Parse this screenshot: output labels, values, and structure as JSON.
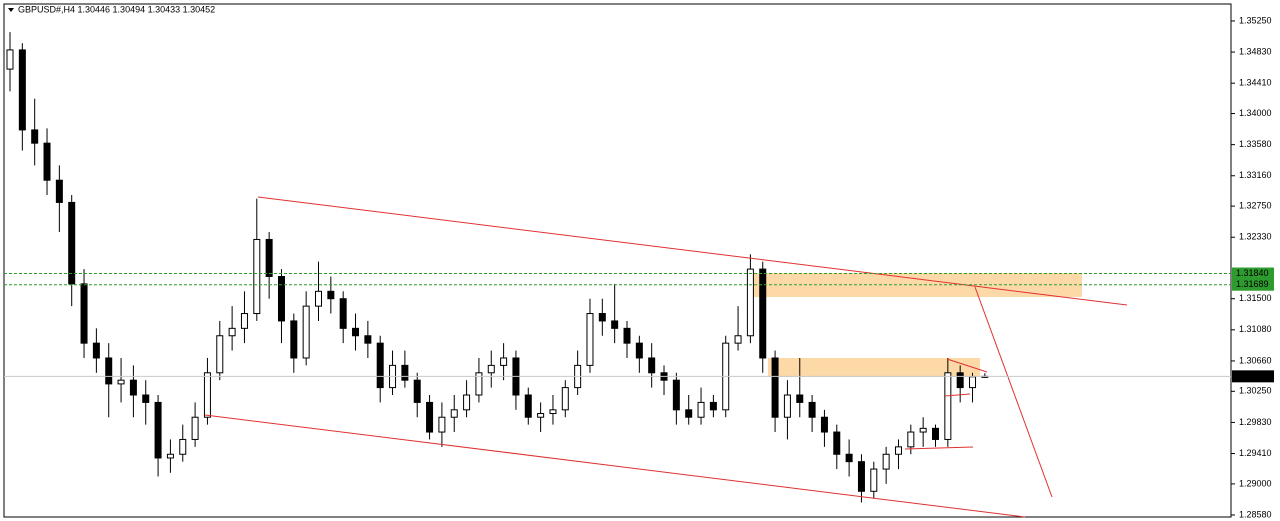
{
  "chart_data": {
    "type": "candlestick",
    "title": "GBPUSD#,H4  1.30446 1.30494 1.30433 1.30452",
    "ylim": [
      1.28553,
      1.35479
    ],
    "yticks": [
      {
        "value": 1.3525,
        "label": "1.35250"
      },
      {
        "value": 1.3483,
        "label": "1.34830"
      },
      {
        "value": 1.3441,
        "label": "1.34410"
      },
      {
        "value": 1.34,
        "label": "1.34000"
      },
      {
        "value": 1.3358,
        "label": "1.33580"
      },
      {
        "value": 1.3316,
        "label": "1.33160"
      },
      {
        "value": 1.3275,
        "label": "1.32750"
      },
      {
        "value": 1.3233,
        "label": "1.32330"
      },
      {
        "value": 1.315,
        "label": "1.31500"
      },
      {
        "value": 1.3108,
        "label": "1.31080"
      },
      {
        "value": 1.3066,
        "label": "1.30660"
      },
      {
        "value": 1.3025,
        "label": "1.30250"
      },
      {
        "value": 1.2983,
        "label": "1.29830"
      },
      {
        "value": 1.2941,
        "label": "1.29410"
      },
      {
        "value": 1.29,
        "label": "1.29000"
      },
      {
        "value": 1.2858,
        "label": "1.28580"
      }
    ],
    "price_lines": [
      {
        "price": {
          "value": 1.3184,
          "label": "1.31840"
        },
        "color": "#2e9b2e",
        "style": "dashed"
      },
      {
        "price": 1.31689,
        "color": "#2e9b2e",
        "style": "dashed"
      },
      {
        "price": 1.30452,
        "color": "#000000",
        "style": "solid"
      }
    ],
    "bull_color": "#ffffff",
    "bear_color": "#000000",
    "ohlc": [
      [
        1.346,
        1.351,
        1.343,
        1.34859
      ],
      [
        1.34859,
        1.3495,
        1.335,
        1.33779
      ],
      [
        1.33779,
        1.342,
        1.333,
        1.336
      ],
      [
        1.336,
        1.338,
        1.329,
        1.331
      ],
      [
        1.331,
        1.333,
        1.324,
        1.328
      ],
      [
        1.328,
        1.329,
        1.314,
        1.317
      ],
      [
        1.317,
        1.319,
        1.307,
        1.309
      ],
      [
        1.309,
        1.311,
        1.305,
        1.307
      ],
      [
        1.307,
        1.309,
        1.299,
        1.3035
      ],
      [
        1.3035,
        1.307,
        1.301,
        1.304
      ],
      [
        1.304,
        1.306,
        1.299,
        1.302
      ],
      [
        1.302,
        1.304,
        1.298,
        1.301
      ],
      [
        1.301,
        1.302,
        1.291,
        1.2935
      ],
      [
        1.2935,
        1.296,
        1.2915,
        1.294
      ],
      [
        1.294,
        1.298,
        1.293,
        1.296
      ],
      [
        1.296,
        1.301,
        1.295,
        1.299
      ],
      [
        1.299,
        1.307,
        1.298,
        1.305
      ],
      [
        1.305,
        1.312,
        1.304,
        1.31
      ],
      [
        1.31,
        1.314,
        1.308,
        1.311
      ],
      [
        1.311,
        1.316,
        1.309,
        1.313
      ],
      [
        1.313,
        1.3285,
        1.312,
        1.323
      ],
      [
        1.323,
        1.324,
        1.315,
        1.318
      ],
      [
        1.318,
        1.319,
        1.309,
        1.312
      ],
      [
        1.312,
        1.313,
        1.305,
        1.307
      ],
      [
        1.307,
        1.316,
        1.306,
        1.314
      ],
      [
        1.314,
        1.32,
        1.312,
        1.316
      ],
      [
        1.316,
        1.318,
        1.313,
        1.315
      ],
      [
        1.315,
        1.316,
        1.309,
        1.311
      ],
      [
        1.311,
        1.313,
        1.308,
        1.31
      ],
      [
        1.31,
        1.312,
        1.307,
        1.309
      ],
      [
        1.309,
        1.31,
        1.301,
        1.303
      ],
      [
        1.303,
        1.308,
        1.302,
        1.306
      ],
      [
        1.306,
        1.308,
        1.303,
        1.304
      ],
      [
        1.304,
        1.305,
        1.299,
        1.301
      ],
      [
        1.301,
        1.302,
        1.296,
        1.297
      ],
      [
        1.297,
        1.301,
        1.295,
        1.299
      ],
      [
        1.299,
        1.302,
        1.297,
        1.3
      ],
      [
        1.3,
        1.304,
        1.299,
        1.302
      ],
      [
        1.302,
        1.307,
        1.301,
        1.305
      ],
      [
        1.305,
        1.308,
        1.303,
        1.306
      ],
      [
        1.306,
        1.309,
        1.304,
        1.307
      ],
      [
        1.307,
        1.308,
        1.3,
        1.302
      ],
      [
        1.302,
        1.303,
        1.298,
        1.299
      ],
      [
        1.299,
        1.301,
        1.297,
        1.2995
      ],
      [
        1.2995,
        1.302,
        1.298,
        1.3
      ],
      [
        1.3,
        1.304,
        1.299,
        1.303
      ],
      [
        1.303,
        1.308,
        1.302,
        1.306
      ],
      [
        1.306,
        1.315,
        1.305,
        1.313
      ],
      [
        1.313,
        1.315,
        1.31,
        1.312
      ],
      [
        1.312,
        1.317,
        1.309,
        1.311
      ],
      [
        1.311,
        1.312,
        1.307,
        1.309
      ],
      [
        1.309,
        1.31,
        1.305,
        1.307
      ],
      [
        1.307,
        1.309,
        1.303,
        1.305
      ],
      [
        1.305,
        1.306,
        1.302,
        1.304
      ],
      [
        1.304,
        1.305,
        1.298,
        1.3
      ],
      [
        1.3,
        1.302,
        1.298,
        1.299
      ],
      [
        1.299,
        1.303,
        1.298,
        1.301
      ],
      [
        1.301,
        1.302,
        1.299,
        1.3
      ],
      [
        1.3,
        1.31,
        1.299,
        1.309
      ],
      [
        1.309,
        1.314,
        1.308,
        1.31
      ],
      [
        1.31,
        1.321,
        1.309,
        1.319
      ],
      [
        1.319,
        1.32,
        1.305,
        1.307
      ],
      [
        1.307,
        1.308,
        1.297,
        1.299
      ],
      [
        1.299,
        1.304,
        1.296,
        1.302
      ],
      [
        1.302,
        1.307,
        1.299,
        1.301
      ],
      [
        1.301,
        1.302,
        1.297,
        1.299
      ],
      [
        1.299,
        1.3,
        1.295,
        1.297
      ],
      [
        1.297,
        1.298,
        1.292,
        1.294
      ],
      [
        1.294,
        1.296,
        1.291,
        1.293
      ],
      [
        1.293,
        1.294,
        1.2875,
        1.289
      ],
      [
        1.289,
        1.293,
        1.288,
        1.292
      ],
      [
        1.292,
        1.295,
        1.29,
        1.294
      ],
      [
        1.294,
        1.296,
        1.292,
        1.295
      ],
      [
        1.295,
        1.298,
        1.294,
        1.297
      ],
      [
        1.297,
        1.299,
        1.295,
        1.2975
      ],
      [
        1.2975,
        1.298,
        1.295,
        1.296
      ],
      [
        1.296,
        1.307,
        1.295,
        1.305
      ],
      [
        1.305,
        1.306,
        1.301,
        1.303
      ],
      [
        1.303,
        1.305,
        1.301,
        1.30446
      ],
      [
        1.30446,
        1.30494,
        1.30433,
        1.30452
      ]
    ]
  }
}
